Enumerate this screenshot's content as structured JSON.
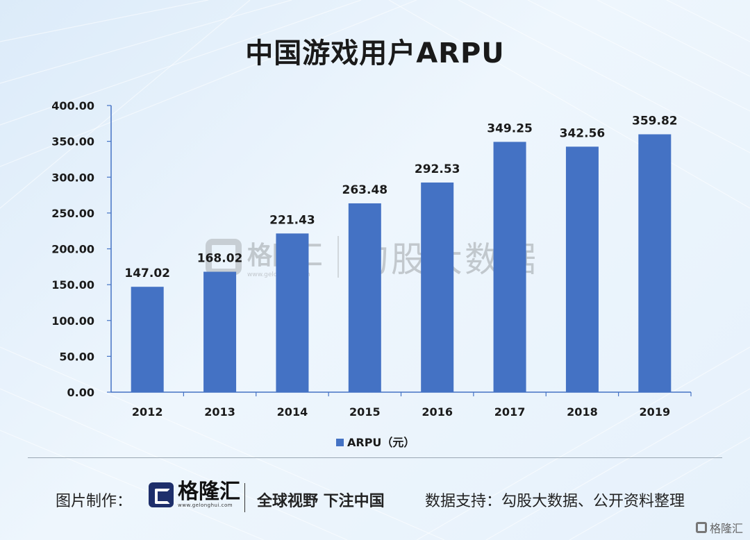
{
  "title": "中国游戏用户ARPU",
  "chart_data": {
    "type": "bar",
    "title": "中国游戏用户ARPU",
    "categories": [
      "2012",
      "2013",
      "2014",
      "2015",
      "2016",
      "2017",
      "2018",
      "2019"
    ],
    "series": [
      {
        "name": "ARPU（元）",
        "values": [
          147.02,
          168.02,
          221.43,
          263.48,
          292.53,
          349.25,
          342.56,
          359.82
        ],
        "color": "#4472c4"
      }
    ],
    "data_labels": [
      "147.02",
      "168.02",
      "221.43",
      "263.48",
      "292.53",
      "349.25",
      "342.56",
      "359.82"
    ],
    "y_ticks": [
      "0.00",
      "50.00",
      "100.00",
      "150.00",
      "200.00",
      "250.00",
      "300.00",
      "350.00",
      "400.00"
    ],
    "ylim": [
      0,
      400
    ],
    "grid": false,
    "legend_position": "bottom"
  },
  "watermark": {
    "brand": "格隆汇",
    "url": "www.gelonghui.com",
    "name": "勾股大数据"
  },
  "footer": {
    "made_by_label": "图片制作：",
    "logo_brand": "格隆汇",
    "logo_url": "www.gelonghui.com",
    "slogan": "全球视野 下注中国",
    "data_support": "数据支持：勾股大数据、公开资料整理"
  },
  "corner_logo": "格隆汇",
  "colors": {
    "bar": "#4472c4",
    "axis": "#4472c4",
    "title": "#1a1a1a"
  }
}
